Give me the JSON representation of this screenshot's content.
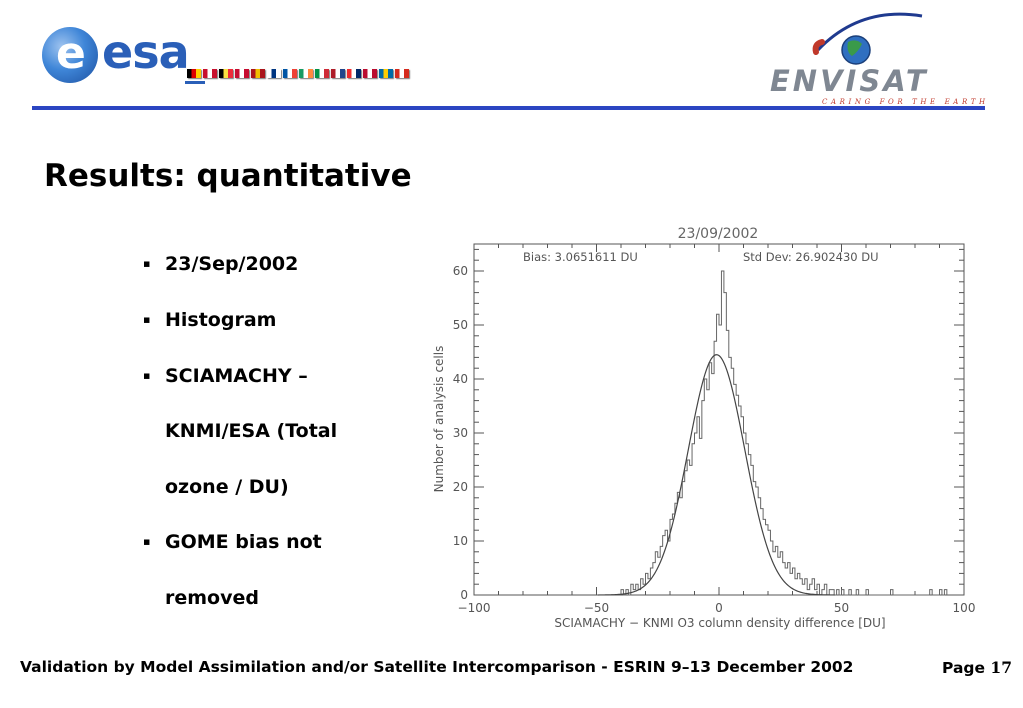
{
  "header": {
    "esa_logo": {
      "letter": "e",
      "wordmark": "esa"
    },
    "flag_colors": [
      [
        "#000000",
        "#dd0000",
        "#ffce00"
      ],
      [
        "#c8102e",
        "#ffffff",
        "#c8102e"
      ],
      [
        "#000000",
        "#fae042",
        "#ed2939"
      ],
      [
        "#c60c30",
        "#ffffff",
        "#c60c30"
      ],
      [
        "#aa151b",
        "#f1bf00",
        "#aa151b"
      ],
      [
        "#ffffff",
        "#003580",
        "#ffffff"
      ],
      [
        "#0055a4",
        "#ffffff",
        "#ef4135"
      ],
      [
        "#169b62",
        "#ffffff",
        "#ff883e"
      ],
      [
        "#009246",
        "#ffffff",
        "#ce2b37"
      ],
      [
        "#ae1c28",
        "#ffffff",
        "#21468b"
      ],
      [
        "#ef2b2d",
        "#ffffff",
        "#002868"
      ],
      [
        "#ba0c2f",
        "#ffffff",
        "#ba0c2f"
      ],
      [
        "#006aa7",
        "#fecc00",
        "#006aa7"
      ],
      [
        "#d52b1e",
        "#ffffff",
        "#d52b1e"
      ]
    ],
    "envisat_logo": {
      "wordmark": "ENVISAT",
      "tagline": "CARING FOR THE EARTH"
    },
    "rule_color": "#2b45c2"
  },
  "slide": {
    "title": "Results: quantitative",
    "bullets": [
      {
        "marker": "▪",
        "text": "23/Sep/2002"
      },
      {
        "marker": "▪",
        "text": "Histogram"
      },
      {
        "marker": "▪",
        "lines": [
          "SCIAMACHY –",
          "KNMI/ESA (Total",
          "ozone / DU)"
        ]
      },
      {
        "marker": "▪",
        "lines": [
          "GOME bias not",
          "removed"
        ]
      }
    ]
  },
  "chart_data": {
    "type": "histogram",
    "title": "23/09/2002",
    "annotations": {
      "bias": "Bias: 3.0651611 DU",
      "std_dev": "Std Dev: 26.902430 DU"
    },
    "xlabel": "SCIAMACHY − KNMI O3 column density difference [DU]",
    "ylabel": "Number of analysis cells",
    "xlim": [
      -100,
      100
    ],
    "ylim": [
      0,
      65
    ],
    "x_ticks": [
      -100,
      -50,
      0,
      50,
      100
    ],
    "x_tick_labels": [
      "−100",
      "−50",
      "0",
      "50",
      "100"
    ],
    "y_ticks": [
      0,
      10,
      20,
      30,
      40,
      50,
      60
    ],
    "y_tick_labels": [
      "0",
      "10",
      "20",
      "30",
      "40",
      "50",
      "60"
    ],
    "histogram": {
      "bin_start": -40,
      "bin_width": 1,
      "counts": [
        1,
        0,
        1,
        0,
        2,
        1,
        2,
        1,
        3,
        2,
        4,
        3,
        5,
        6,
        8,
        7,
        9,
        11,
        12,
        10,
        14,
        15,
        17,
        19,
        18,
        21,
        23,
        25,
        24,
        28,
        30,
        33,
        29,
        36,
        40,
        38,
        43,
        41,
        47,
        52,
        50,
        60,
        56,
        49,
        44,
        42,
        39,
        37,
        35,
        33,
        30,
        28,
        26,
        24,
        21,
        20,
        18,
        16,
        14,
        13,
        12,
        10,
        8,
        9,
        7,
        8,
        6,
        5,
        6,
        4,
        5,
        3,
        4,
        3,
        2,
        3,
        1,
        2,
        3,
        1,
        2,
        0,
        1,
        2,
        0,
        1,
        1,
        0,
        1,
        0,
        1,
        0,
        0,
        1,
        0,
        0,
        1,
        0,
        0,
        0,
        1,
        0,
        0,
        0,
        0,
        0,
        0,
        0,
        0,
        0,
        1,
        0,
        0,
        0,
        0,
        0,
        0,
        0,
        0,
        0,
        0,
        0,
        0,
        0,
        0,
        0,
        1,
        0,
        0,
        0,
        1,
        0,
        1
      ]
    },
    "fit_curve": {
      "type": "gaussian",
      "mean": -1,
      "sigma": 11.5,
      "peak": 44.5
    }
  },
  "footer": {
    "text": "Validation by Model Assimilation and/or Satellite Intercomparison - ESRIN 9–13 December 2002",
    "page_label": "Page ",
    "page_number": "17"
  }
}
